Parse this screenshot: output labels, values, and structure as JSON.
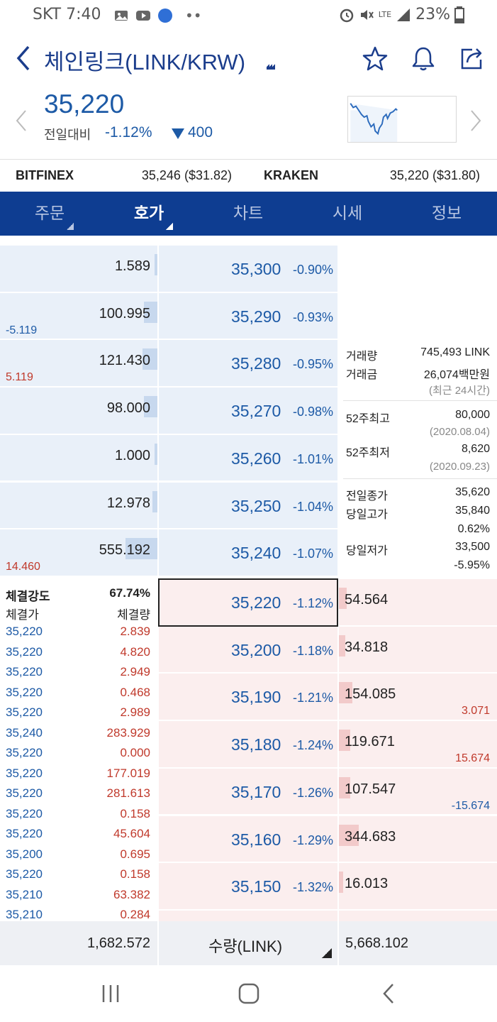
{
  "status": {
    "carrier": "SKT",
    "time": "7:40",
    "battery": "23%",
    "lte": "LTE"
  },
  "header": {
    "title": "체인링크(LINK/KRW)"
  },
  "price": {
    "current": "35,220",
    "compare_label": "전일대비",
    "change_pct": "-1.12%",
    "change_abs": "400",
    "change_color": "#1d5aa6"
  },
  "exchanges": [
    {
      "name": "BITFINEX",
      "value": "35,246 ($31.82)"
    },
    {
      "name": "KRAKEN",
      "value": "35,220 ($31.80)"
    }
  ],
  "tabs": [
    {
      "label": "주문",
      "active": false,
      "caret": true
    },
    {
      "label": "호가",
      "active": true,
      "caret": true
    },
    {
      "label": "차트",
      "active": false,
      "caret": false
    },
    {
      "label": "시세",
      "active": false,
      "caret": false
    },
    {
      "label": "정보",
      "active": false,
      "caret": false
    }
  ],
  "asks": [
    {
      "qty": "1.589",
      "price": "35,300",
      "pct": "-0.90%",
      "chg": "",
      "chg_color": ""
    },
    {
      "qty": "100.995",
      "price": "35,290",
      "pct": "-0.93%",
      "chg": "-5.119",
      "chg_color": "blue"
    },
    {
      "qty": "121.430",
      "price": "35,280",
      "pct": "-0.95%",
      "chg": "5.119",
      "chg_color": "red"
    },
    {
      "qty": "98.000",
      "price": "35,270",
      "pct": "-0.98%",
      "chg": "",
      "chg_color": ""
    },
    {
      "qty": "1.000",
      "price": "35,260",
      "pct": "-1.01%",
      "chg": "",
      "chg_color": ""
    },
    {
      "qty": "12.978",
      "price": "35,250",
      "pct": "-1.04%",
      "chg": "",
      "chg_color": ""
    },
    {
      "qty": "555.192",
      "price": "35,240",
      "pct": "-1.07%",
      "chg": "14.460",
      "chg_color": "red"
    }
  ],
  "bids": [
    {
      "price": "35,220",
      "pct": "-1.12%",
      "qty": "54.564",
      "chg": "",
      "chg_color": ""
    },
    {
      "price": "35,200",
      "pct": "-1.18%",
      "qty": "34.818",
      "chg": "",
      "chg_color": ""
    },
    {
      "price": "35,190",
      "pct": "-1.21%",
      "qty": "154.085",
      "chg": "3.071",
      "chg_color": "red"
    },
    {
      "price": "35,180",
      "pct": "-1.24%",
      "qty": "119.671",
      "chg": "15.674",
      "chg_color": "red"
    },
    {
      "price": "35,170",
      "pct": "-1.26%",
      "qty": "107.547",
      "chg": "-15.674",
      "chg_color": "blue"
    },
    {
      "price": "35,160",
      "pct": "-1.29%",
      "qty": "344.683",
      "chg": "",
      "chg_color": ""
    },
    {
      "price": "35,150",
      "pct": "-1.32%",
      "qty": "16.013",
      "chg": "",
      "chg_color": ""
    }
  ],
  "info": {
    "volume_label": "거래량",
    "volume": "745,493 LINK",
    "amount_label": "거래금",
    "amount": "26,074백만원",
    "period_note": "(최근 24시간)",
    "high52_label": "52주최고",
    "high52": "80,000",
    "high52_date": "(2020.08.04)",
    "low52_label": "52주최저",
    "low52": "8,620",
    "low52_date": "(2020.09.23)",
    "prev_close_label": "전일종가",
    "prev_close": "35,620",
    "day_high_label": "당일고가",
    "day_high": "35,840",
    "day_high_pct": "0.62%",
    "day_low_label": "당일저가",
    "day_low": "33,500",
    "day_low_pct": "-5.95%"
  },
  "trades": {
    "strength_label": "체결강도",
    "strength": "67.74%",
    "price_label": "체결가",
    "qty_label": "체결량",
    "rows": [
      {
        "price": "35,220",
        "qty": "2.839"
      },
      {
        "price": "35,220",
        "qty": "4.820"
      },
      {
        "price": "35,220",
        "qty": "2.949"
      },
      {
        "price": "35,220",
        "qty": "0.468"
      },
      {
        "price": "35,220",
        "qty": "2.989"
      },
      {
        "price": "35,240",
        "qty": "283.929"
      },
      {
        "price": "35,220",
        "qty": "0.000"
      },
      {
        "price": "35,220",
        "qty": "177.019"
      },
      {
        "price": "35,220",
        "qty": "281.613"
      },
      {
        "price": "35,220",
        "qty": "0.158"
      },
      {
        "price": "35,220",
        "qty": "45.604"
      },
      {
        "price": "35,200",
        "qty": "0.695"
      },
      {
        "price": "35,220",
        "qty": "0.158"
      },
      {
        "price": "35,210",
        "qty": "63.382"
      },
      {
        "price": "35,210",
        "qty": "0.284"
      }
    ]
  },
  "summary": {
    "ask_total": "1,682.572",
    "unit_label": "수량(LINK)",
    "bid_total": "5,668.102"
  },
  "colors": {
    "accent": "#0e3d91",
    "down": "#1d5aa6",
    "up": "#c0392b",
    "ask_bg": "#e9f0f9",
    "bid_bg": "#fbeeee"
  }
}
